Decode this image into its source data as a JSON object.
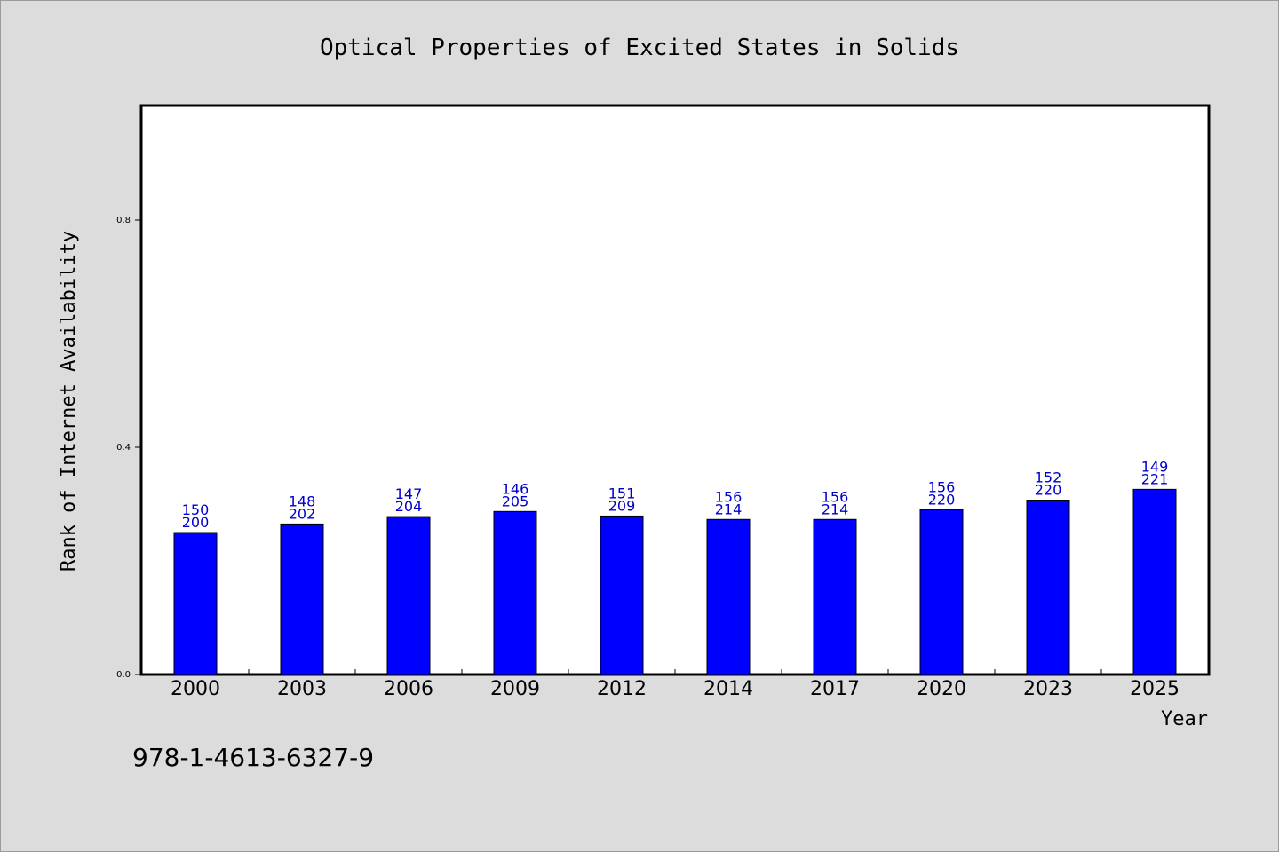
{
  "chart_data": {
    "type": "bar",
    "title": "Optical Properties of Excited States in Solids",
    "xlabel": "Year",
    "ylabel": "Rank of Internet Availability",
    "categories": [
      "2000",
      "2003",
      "2006",
      "2009",
      "2012",
      "2014",
      "2017",
      "2020",
      "2023",
      "2025"
    ],
    "values": [
      0.25,
      0.265,
      0.278,
      0.287,
      0.279,
      0.273,
      0.273,
      0.29,
      0.307,
      0.326
    ],
    "label_top": [
      "150",
      "148",
      "147",
      "146",
      "151",
      "156",
      "156",
      "156",
      "152",
      "149"
    ],
    "label_bottom": [
      "200",
      "202",
      "204",
      "205",
      "209",
      "214",
      "214",
      "220",
      "220",
      "221"
    ],
    "yticks": [
      "0.0",
      "0.4",
      "0.8"
    ],
    "ytick_values": [
      0.0,
      0.4,
      0.8
    ],
    "ylim": [
      0,
      1.0
    ],
    "bar_color": "#0000ff",
    "label_color": "#0000cc",
    "background_color": "#dcdcdc",
    "plot_background": "#ffffff",
    "grid": false
  },
  "footer": {
    "isbn": "978-1-4613-6327-9"
  }
}
